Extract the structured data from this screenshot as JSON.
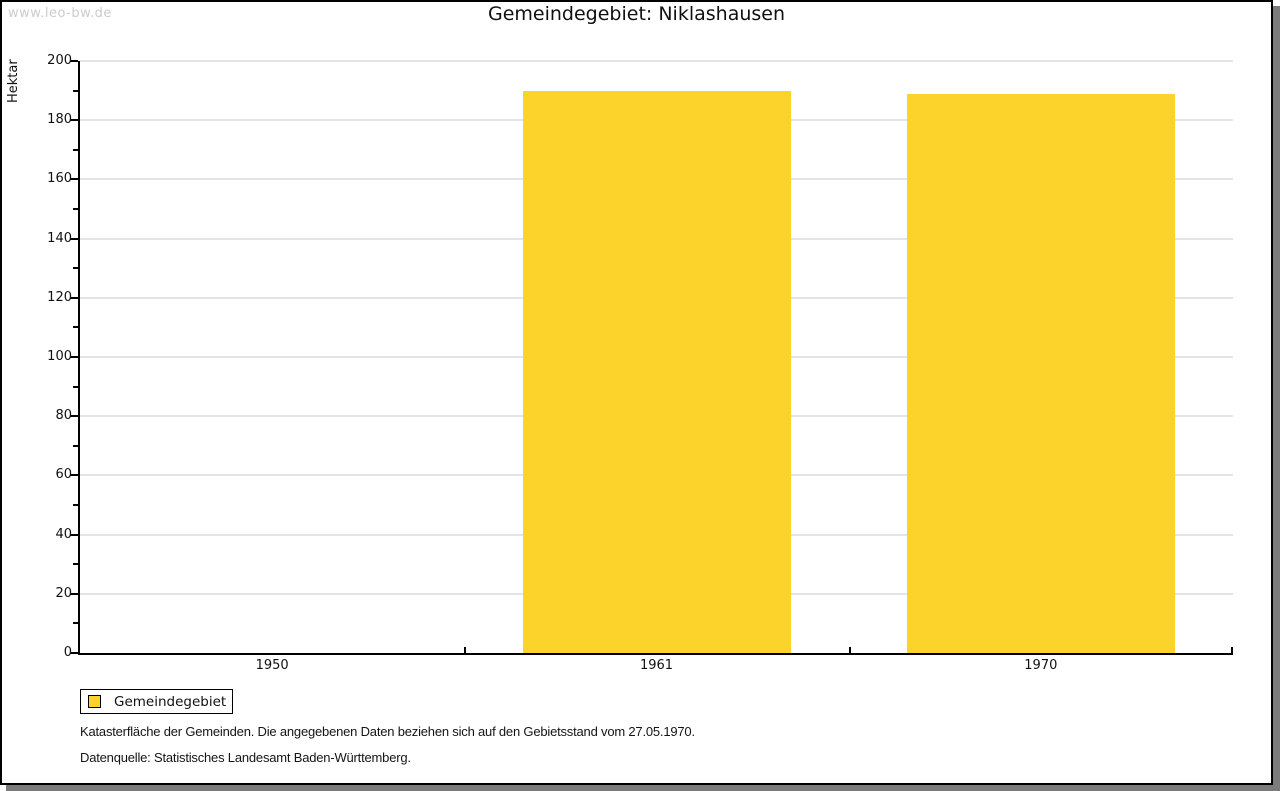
{
  "watermark": "www.leo-bw.de",
  "title": "Gemeindegebiet: Niklashausen",
  "chart_data": {
    "type": "bar",
    "title": "Gemeindegebiet: Niklashausen",
    "ylabel": "Hektar",
    "xlabel": "",
    "categories": [
      "1950",
      "1961",
      "1970"
    ],
    "series": [
      {
        "name": "Gemeindegebiet",
        "values": [
          null,
          190,
          189
        ]
      }
    ],
    "ylim": [
      0,
      200
    ],
    "y_major_ticks": [
      0,
      20,
      40,
      60,
      80,
      100,
      120,
      140,
      160,
      180,
      200
    ],
    "y_minor_step": 10,
    "grid": true,
    "legend_position": "bottom-left",
    "bar_color": "#fcd32b"
  },
  "legend": {
    "label": "Gemeindegebiet",
    "swatch_color": "#fcd32b"
  },
  "footnotes": [
    "Katasterfläche der Gemeinden. Die angegebenen Daten beziehen sich auf den Gebietsstand vom 27.05.1970.",
    "Datenquelle: Statistisches Landesamt Baden-Württemberg."
  ],
  "colors": {
    "bar": "#fcd32b",
    "axis": "#000000",
    "grid": "#e4e4e4",
    "watermark": "#cccccc",
    "frame_shadow": "#7b7b7b",
    "background": "#ffffff"
  }
}
